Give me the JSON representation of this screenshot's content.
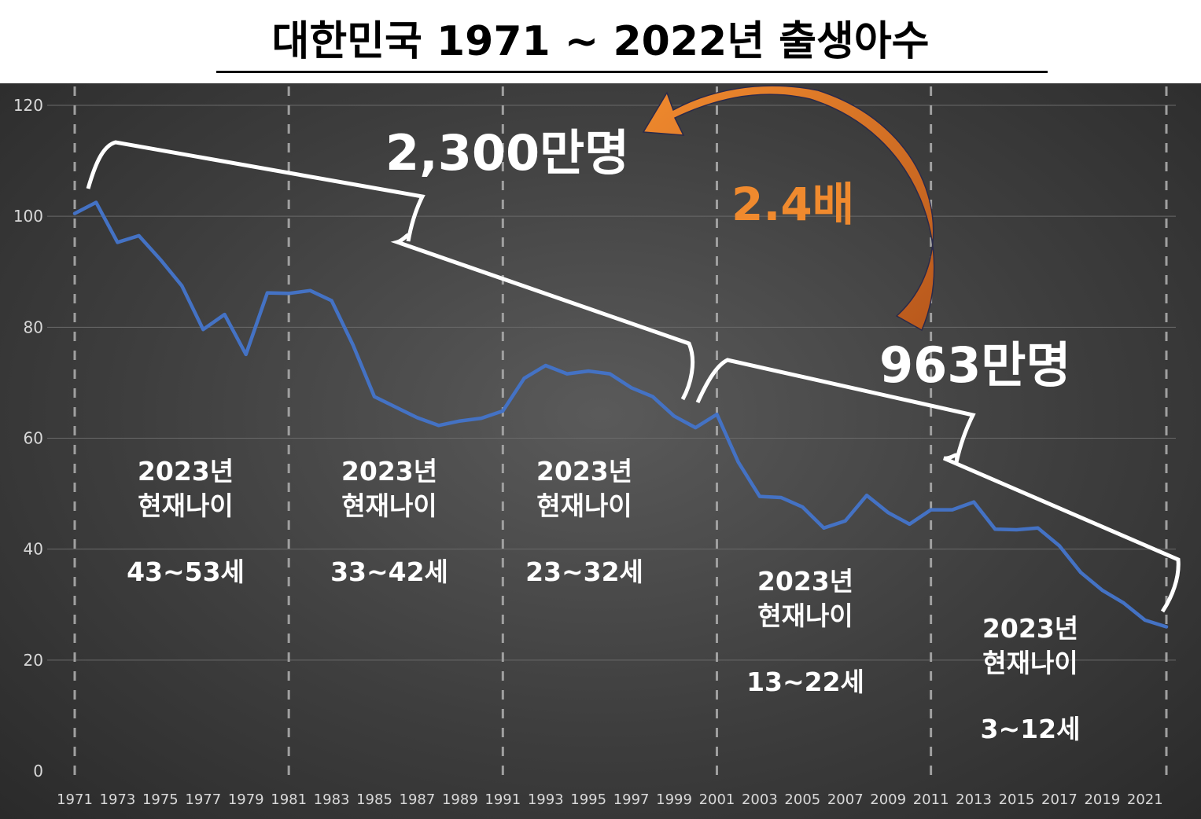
{
  "title": "대한민국 1971 ~ 2022년 출생아수",
  "chart_data": {
    "type": "line",
    "title": "대한민국 1971 ~ 2022년 출생아수",
    "xlabel": "",
    "ylabel": "",
    "ylim": [
      0,
      120
    ],
    "yticks": [
      "0",
      "20",
      "40",
      "60",
      "80",
      "100",
      "120"
    ],
    "xticks": [
      "1971",
      "1973",
      "1975",
      "1977",
      "1979",
      "1981",
      "1983",
      "1985",
      "1987",
      "1989",
      "1991",
      "1993",
      "1995",
      "1997",
      "1999",
      "2001",
      "2003",
      "2005",
      "2007",
      "2009",
      "2011",
      "2013",
      "2015",
      "2017",
      "2019",
      "2021"
    ],
    "grid": "horizontal",
    "line_color": "#4472c4",
    "x": [
      1971,
      1972,
      1973,
      1974,
      1975,
      1976,
      1977,
      1978,
      1979,
      1980,
      1981,
      1982,
      1983,
      1984,
      1985,
      1986,
      1987,
      1988,
      1989,
      1990,
      1991,
      1992,
      1993,
      1994,
      1995,
      1996,
      1997,
      1998,
      1999,
      2000,
      2001,
      2002,
      2003,
      2004,
      2005,
      2006,
      2007,
      2008,
      2009,
      2010,
      2011,
      2012,
      2013,
      2014,
      2015,
      2016,
      2017,
      2018,
      2019,
      2020,
      2021,
      2022
    ],
    "values": [
      100.5,
      102.5,
      95.3,
      96.5,
      92.2,
      87.5,
      79.6,
      82.3,
      75.1,
      86.2,
      86.1,
      86.6,
      84.8,
      76.8,
      67.5,
      65.6,
      63.7,
      62.3,
      63.1,
      63.6,
      64.9,
      70.8,
      73.1,
      71.6,
      72.1,
      71.6,
      69.1,
      67.5,
      64.0,
      61.9,
      64.3,
      55.7,
      49.5,
      49.3,
      47.6,
      43.8,
      45.1,
      49.7,
      46.6,
      44.5,
      47.1,
      47.1,
      48.5,
      43.6,
      43.5,
      43.8,
      40.6,
      35.8,
      32.6,
      30.3,
      27.2,
      26.0
    ]
  },
  "annotations": {
    "total_before": "2,300만명",
    "total_after": "963만명",
    "ratio": "2.4배",
    "generations": [
      {
        "year_line": "2023년",
        "label": "현재나이",
        "age": "43~53세"
      },
      {
        "year_line": "2023년",
        "label": "현재나이",
        "age": "33~42세"
      },
      {
        "year_line": "2023년",
        "label": "현재나이",
        "age": "23~32세"
      },
      {
        "year_line": "2023년",
        "label": "현재나이",
        "age": "13~22세"
      },
      {
        "year_line": "2023년",
        "label": "현재나이",
        "age": "3~12세"
      }
    ]
  },
  "colors": {
    "line": "#4472c4",
    "arrow": "#e87a2a",
    "text_accent": "#f08a2e"
  }
}
